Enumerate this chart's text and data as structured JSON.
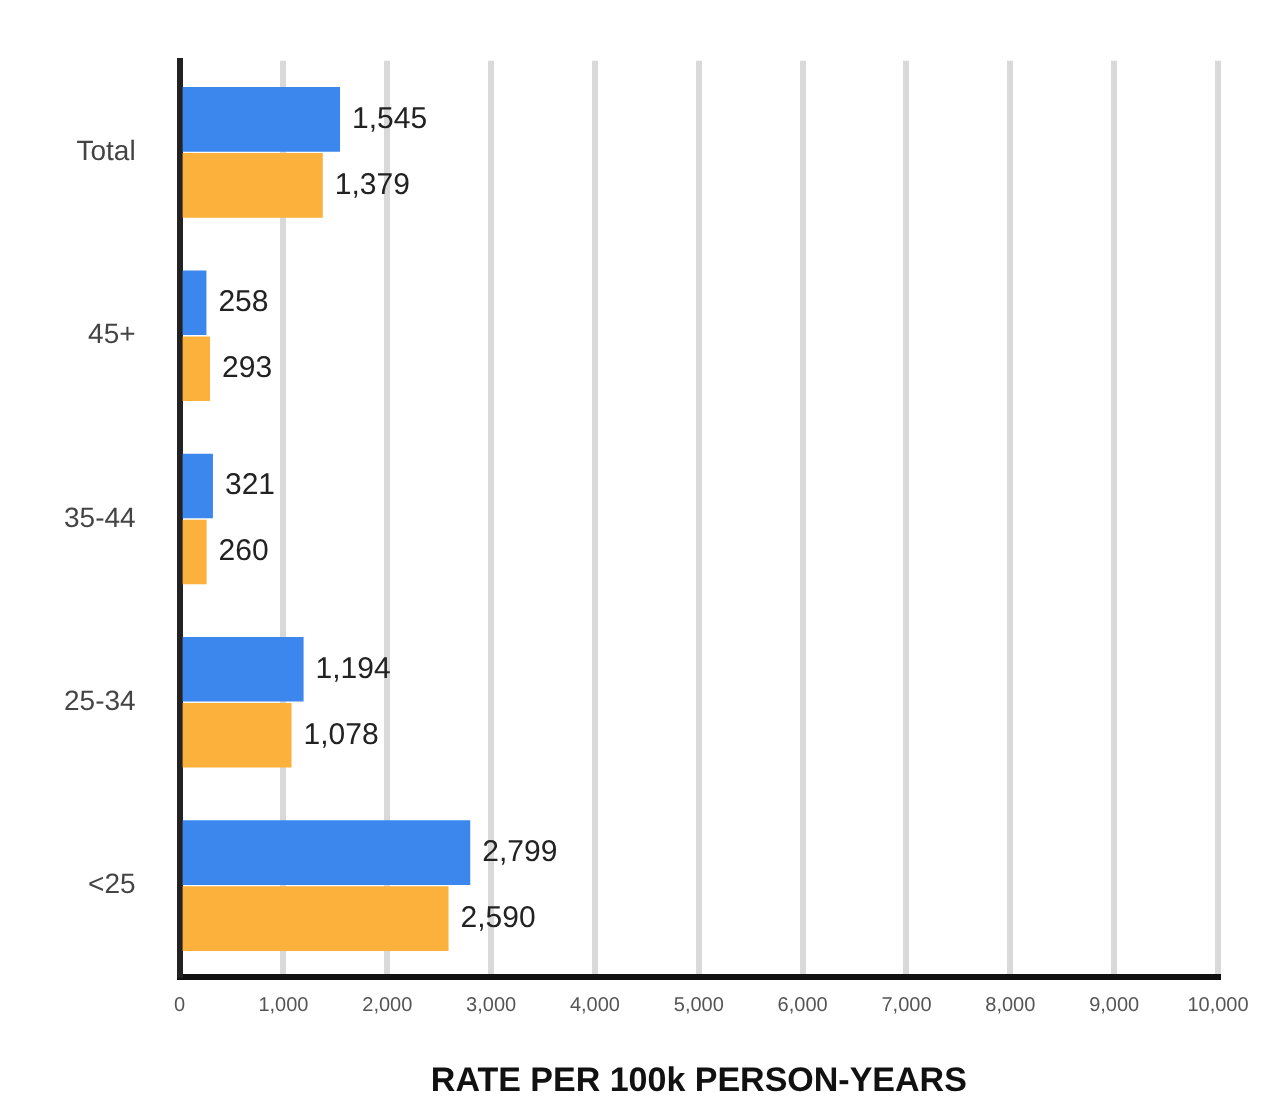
{
  "chart_data": {
    "type": "bar",
    "orientation": "horizontal",
    "xlabel": "RATE PER 100k PERSON-YEARS",
    "categories": [
      "Total",
      "45+",
      "35-44",
      "25-34",
      "<25"
    ],
    "series": [
      {
        "color": "#3b87ee",
        "values": [
          1545,
          258,
          321,
          1194,
          2799
        ],
        "value_labels": [
          "1,545",
          "258",
          "321",
          "1,194",
          "2,799"
        ]
      },
      {
        "color": "#fbb13c",
        "values": [
          1379,
          293,
          260,
          1078,
          2590
        ],
        "value_labels": [
          "1,379",
          "293",
          "260",
          "1,078",
          "2,590"
        ]
      }
    ],
    "xlim": [
      0,
      10000
    ],
    "xticks": [
      0,
      {
        "value": 1000,
        "label": "1,000"
      },
      {
        "value": 2000,
        "label": "2,000"
      },
      {
        "value": 3000,
        "label": "3,000"
      },
      {
        "value": 4000,
        "label": "4,000"
      },
      {
        "value": 5000,
        "label": "5,000"
      },
      {
        "value": 6000,
        "label": "6,000"
      },
      {
        "value": 7000,
        "label": "7,000"
      },
      {
        "value": 8000,
        "label": "8,000"
      },
      {
        "value": 9000,
        "label": "9,000"
      },
      {
        "value": 10000,
        "label": "10,000"
      }
    ],
    "grid": "x",
    "legend": false
  }
}
